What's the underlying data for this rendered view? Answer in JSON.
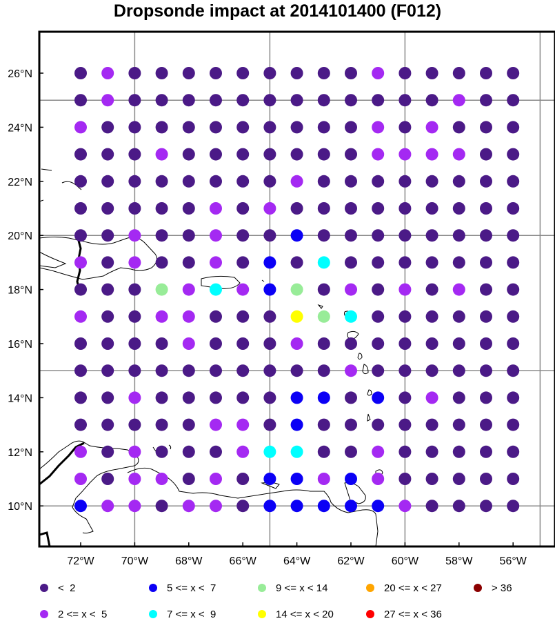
{
  "title": "Dropsonde impact at 2014101400 (F012)",
  "lon_ticks": [
    "72°W",
    "70°W",
    "68°W",
    "66°W",
    "64°W",
    "62°W",
    "60°W",
    "58°W",
    "56°W"
  ],
  "lat_ticks": [
    "26°N",
    "24°N",
    "22°N",
    "20°N",
    "18°N",
    "16°N",
    "14°N",
    "12°N",
    "10°N"
  ],
  "lon_values": [
    -72,
    -70,
    -68,
    -66,
    -64,
    -62,
    -60,
    -58,
    -56
  ],
  "lat_values": [
    26,
    24,
    22,
    20,
    18,
    16,
    14,
    12,
    10
  ],
  "gridlines": {
    "lon": [
      -70,
      -65,
      -60,
      -55
    ],
    "lat": [
      25,
      20,
      15,
      10
    ]
  },
  "extent": {
    "lon": [
      -73.2,
      -54.5
    ],
    "lat": [
      8.5,
      27.5
    ]
  },
  "legend": [
    {
      "label": "<  2",
      "color": "#4b1a87"
    },
    {
      "label": "5 <= x <  7",
      "color": "#0b00f5"
    },
    {
      "label": "9 <= x < 14",
      "color": "#98ec98"
    },
    {
      "label": "20 <= x < 27",
      "color": "#ffa500"
    },
    {
      "label": "> 36",
      "color": "#8b0000"
    },
    {
      "label": "2 <= x <  5",
      "color": "#a429f2"
    },
    {
      "label": "7 <= x <  9",
      "color": "#00ffff"
    },
    {
      "label": "14 <= x < 20",
      "color": "#ffff00"
    },
    {
      "label": "27 <= x < 36",
      "color": "#ff0000"
    }
  ],
  "chart_data": {
    "type": "scatter",
    "title": "Dropsonde impact at 2014101400 (F012)",
    "grid": true,
    "categories_key": "0: <2, 1: 2<=x<5, 2: 5<=x<7, 3: 7<=x<9, 4: 9<=x<14, 5: 14<=x<20",
    "lons": [
      -72,
      -71,
      -70,
      -69,
      -68,
      -67,
      -66,
      -65,
      -64,
      -63,
      -62,
      -61,
      -60,
      -59,
      -58,
      -57,
      -56
    ],
    "lats": [
      26,
      25,
      24,
      23,
      22,
      21,
      20,
      19,
      18,
      17,
      16,
      15,
      14,
      13,
      12,
      11,
      10
    ],
    "rows": [
      [
        0,
        1,
        0,
        0,
        0,
        0,
        0,
        0,
        0,
        0,
        0,
        1,
        0,
        0,
        0,
        0,
        0
      ],
      [
        0,
        1,
        0,
        0,
        0,
        0,
        0,
        0,
        0,
        0,
        0,
        0,
        0,
        0,
        1,
        0,
        0
      ],
      [
        1,
        0,
        0,
        0,
        0,
        0,
        0,
        0,
        0,
        0,
        0,
        1,
        0,
        1,
        0,
        0,
        0
      ],
      [
        0,
        0,
        0,
        1,
        0,
        0,
        0,
        0,
        0,
        0,
        0,
        1,
        1,
        1,
        1,
        0,
        0
      ],
      [
        0,
        0,
        0,
        0,
        0,
        0,
        0,
        0,
        1,
        0,
        0,
        0,
        0,
        0,
        0,
        0,
        0
      ],
      [
        0,
        0,
        0,
        0,
        0,
        1,
        0,
        1,
        0,
        0,
        0,
        0,
        0,
        0,
        0,
        0,
        0
      ],
      [
        0,
        0,
        1,
        0,
        0,
        1,
        0,
        0,
        2,
        0,
        0,
        0,
        0,
        0,
        0,
        0,
        0
      ],
      [
        1,
        0,
        1,
        0,
        0,
        1,
        0,
        2,
        0,
        3,
        0,
        0,
        0,
        0,
        0,
        0,
        0
      ],
      [
        0,
        0,
        0,
        4,
        1,
        3,
        1,
        2,
        4,
        0,
        1,
        0,
        1,
        0,
        1,
        0,
        0
      ],
      [
        1,
        0,
        0,
        1,
        1,
        0,
        0,
        0,
        5,
        4,
        3,
        0,
        0,
        0,
        0,
        0,
        0
      ],
      [
        0,
        0,
        0,
        0,
        1,
        0,
        0,
        0,
        1,
        0,
        0,
        0,
        0,
        0,
        0,
        0,
        0
      ],
      [
        0,
        0,
        0,
        0,
        0,
        0,
        0,
        0,
        0,
        0,
        1,
        0,
        0,
        0,
        0,
        0,
        0
      ],
      [
        0,
        0,
        1,
        0,
        0,
        0,
        0,
        0,
        2,
        2,
        0,
        2,
        0,
        1,
        0,
        0,
        0
      ],
      [
        0,
        0,
        0,
        0,
        0,
        1,
        1,
        0,
        2,
        0,
        0,
        0,
        0,
        0,
        0,
        0,
        0
      ],
      [
        1,
        0,
        1,
        0,
        0,
        0,
        1,
        3,
        3,
        0,
        0,
        1,
        0,
        0,
        0,
        0,
        0
      ],
      [
        1,
        0,
        1,
        1,
        0,
        1,
        0,
        2,
        2,
        1,
        2,
        1,
        0,
        0,
        0,
        0,
        0
      ],
      [
        2,
        1,
        1,
        0,
        1,
        1,
        0,
        2,
        2,
        2,
        2,
        2,
        1,
        0,
        0,
        0,
        0
      ]
    ],
    "class_colors": [
      "#4b1a87",
      "#a429f2",
      "#0b00f5",
      "#00ffff",
      "#98ec98",
      "#ffff00"
    ]
  }
}
